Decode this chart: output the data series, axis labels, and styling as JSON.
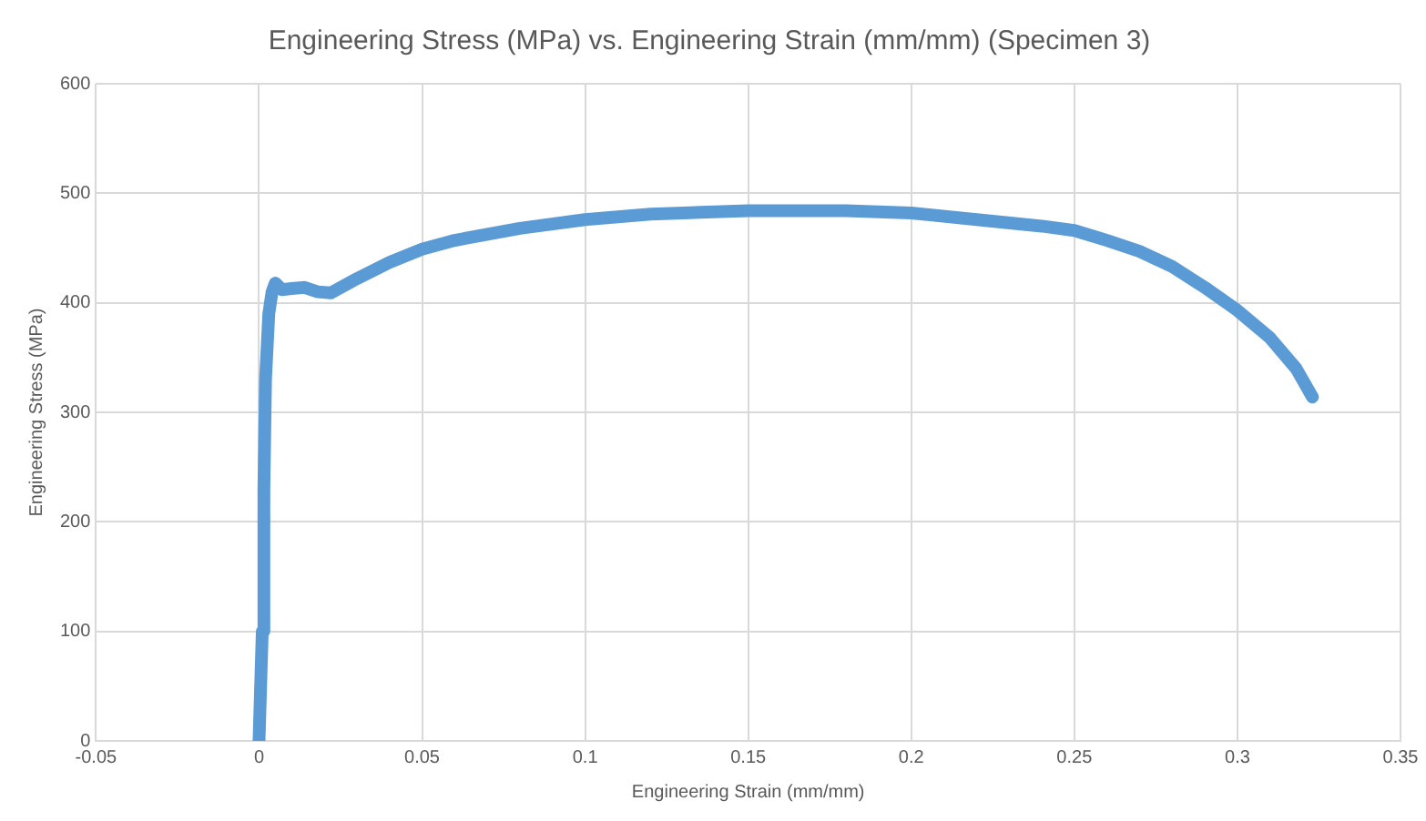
{
  "chart_data": {
    "type": "line",
    "title": "Engineering Stress (MPa) vs. Engineering Strain (mm/mm) (Specimen 3)",
    "xlabel": "Engineering Strain (mm/mm)",
    "ylabel": "Engineering Stress (MPa)",
    "xlim": [
      -0.05,
      0.35
    ],
    "xticks": [
      -0.05,
      0,
      0.05,
      0.1,
      0.15,
      0.2,
      0.25,
      0.3,
      0.35
    ],
    "ylim": [
      0,
      600
    ],
    "yticks": [
      0,
      100,
      200,
      300,
      400,
      500,
      600
    ],
    "grid": true,
    "legend": false,
    "marker": "none",
    "line_style": "solid",
    "series": [
      {
        "color": "#5b9bd5",
        "x": [
          0,
          0.001,
          0.0015,
          0.002,
          0.003,
          0.004,
          0.005,
          0.007,
          0.01,
          0.014,
          0.018,
          0.022,
          0.03,
          0.04,
          0.05,
          0.06,
          0.08,
          0.1,
          0.12,
          0.15,
          0.18,
          0.2,
          0.22,
          0.24,
          0.25,
          0.26,
          0.27,
          0.28,
          0.29,
          0.3,
          0.31,
          0.318,
          0.323
        ],
        "values": [
          0,
          100,
          230,
          330,
          390,
          410,
          418,
          412,
          413,
          414,
          410,
          409,
          422,
          437,
          449,
          457,
          468,
          476,
          481,
          484,
          484,
          482,
          476,
          470,
          466,
          457,
          447,
          433,
          414,
          393,
          368,
          340,
          314
        ]
      }
    ]
  }
}
